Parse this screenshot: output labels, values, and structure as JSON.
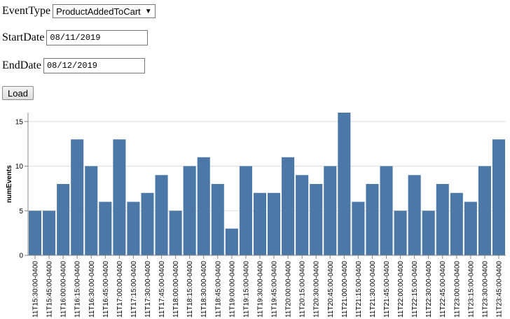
{
  "form": {
    "event_type_label": "EventType",
    "event_type_value": "ProductAddedToCart",
    "start_date_label": "StartDate",
    "start_date_value": "08/11/2019",
    "end_date_label": "EndDate",
    "end_date_value": "08/12/2019",
    "load_label": "Load"
  },
  "icons": {
    "dropdown_caret": "caret-down-icon"
  },
  "colors": {
    "bar": "#4c78a8",
    "grid": "#dddddd",
    "axis": "#888888"
  },
  "chart_data": {
    "type": "bar",
    "categories": [
      "11T15:30:00-0400",
      "11T15:45:00-0400",
      "11T16:00:00-0400",
      "11T16:15:00-0400",
      "11T16:30:00-0400",
      "11T16:45:00-0400",
      "11T17:00:00-0400",
      "11T17:15:00-0400",
      "11T17:30:00-0400",
      "11T17:45:00-0400",
      "11T18:00:00-0400",
      "11T18:15:00-0400",
      "11T18:30:00-0400",
      "11T18:45:00-0400",
      "11T19:00:00-0400",
      "11T19:15:00-0400",
      "11T19:30:00-0400",
      "11T19:45:00-0400",
      "11T20:00:00-0400",
      "11T20:15:00-0400",
      "11T20:30:00-0400",
      "11T20:45:00-0400",
      "11T21:00:00-0400",
      "11T21:15:00-0400",
      "11T21:30:00-0400",
      "11T21:45:00-0400",
      "11T22:00:00-0400",
      "11T22:15:00-0400",
      "11T22:30:00-0400",
      "11T22:45:00-0400",
      "11T23:00:00-0400",
      "11T23:15:00-0400",
      "11T23:30:00-0400",
      "11T23:45:00-0400"
    ],
    "values": [
      5,
      5,
      8,
      13,
      10,
      6,
      13,
      6,
      7,
      9,
      5,
      10,
      11,
      8,
      3,
      10,
      7,
      7,
      11,
      9,
      8,
      10,
      16,
      6,
      8,
      10,
      5,
      9,
      5,
      8,
      7,
      6,
      10,
      13
    ],
    "title": "",
    "xlabel": "",
    "ylabel": "numEvents",
    "ylim": [
      0,
      16
    ],
    "yticks": [
      0,
      5,
      10,
      15
    ],
    "grid": true
  }
}
